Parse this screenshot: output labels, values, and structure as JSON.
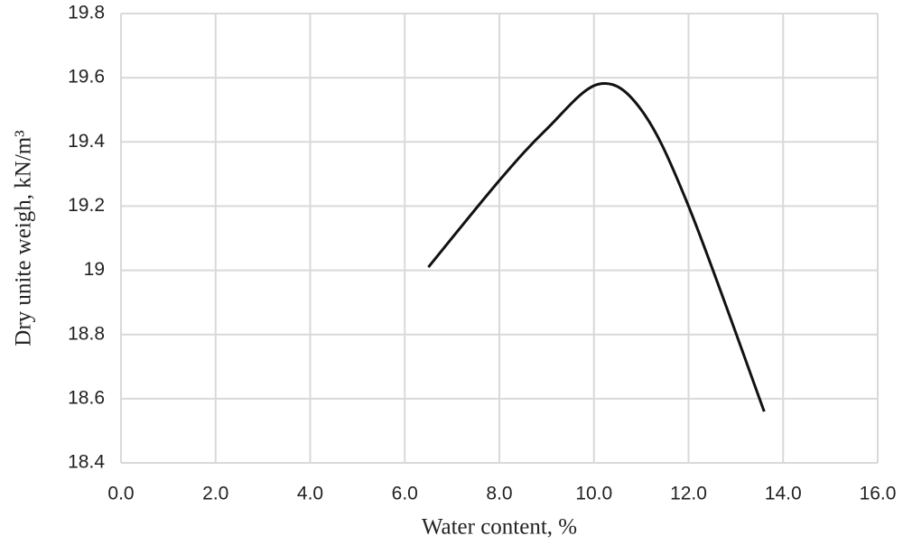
{
  "chart_data": {
    "type": "line",
    "x_label": "Water content, %",
    "y_label": "Dry unite weigh, kN/m³",
    "x": [
      6.5,
      8.0,
      9.0,
      10.1,
      11.0,
      12.0,
      13.6
    ],
    "series": [
      {
        "color": "#111111",
        "values": [
          19.01,
          19.28,
          19.44,
          19.58,
          19.5,
          19.2,
          18.56
        ]
      }
    ],
    "xlim": [
      0,
      16
    ],
    "xticks": [
      {
        "value": 0,
        "label": "0.0"
      },
      {
        "value": 2,
        "label": "2.0"
      },
      {
        "value": 4,
        "label": "4.0"
      },
      {
        "value": 6,
        "label": "6.0"
      },
      {
        "value": 8,
        "label": "8.0"
      },
      {
        "value": 10,
        "label": "10.0"
      },
      {
        "value": 12,
        "label": "12.0"
      },
      {
        "value": 14,
        "label": "14.0"
      },
      {
        "value": 16,
        "label": "16.0"
      }
    ],
    "ylim": [
      18.4,
      19.8
    ],
    "yticks": [
      18.4,
      18.6,
      18.8,
      19,
      19.2,
      19.4,
      19.6,
      19.8
    ],
    "grid": true
  }
}
